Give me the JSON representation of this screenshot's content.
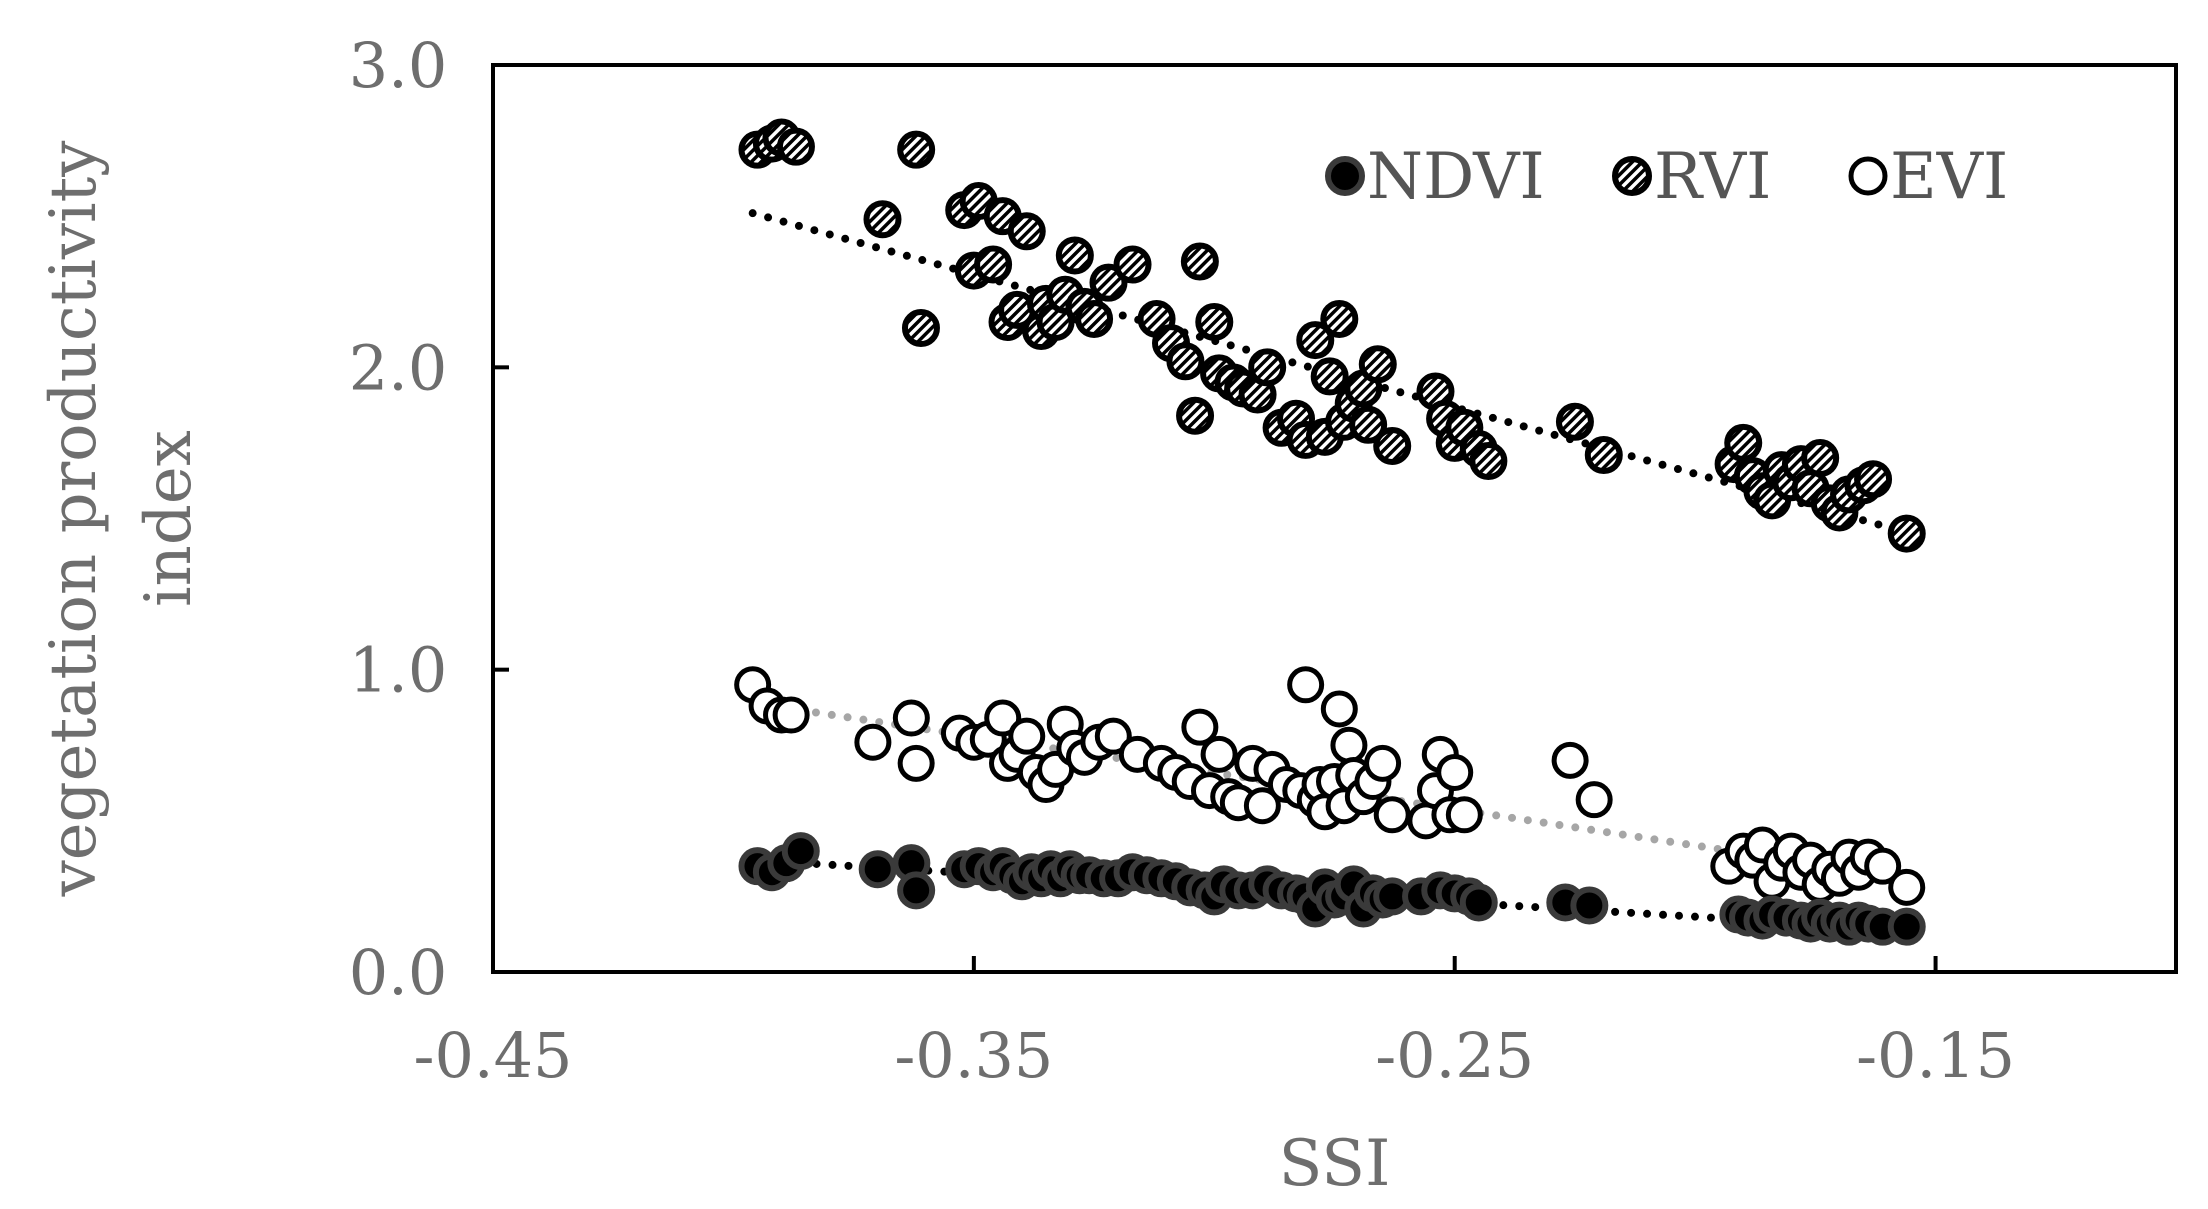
{
  "chart_data": {
    "type": "scatter",
    "title": "",
    "xlabel": "SSI",
    "ylabel_lines": [
      "vegetation productivity",
      "index"
    ],
    "xlim": [
      -0.45,
      -0.1
    ],
    "ylim": [
      0.0,
      3.0
    ],
    "xticks": [
      -0.45,
      -0.35,
      -0.25,
      -0.15
    ],
    "xtick_labels": [
      "-0.45",
      "-0.35",
      "-0.25",
      "-0.15"
    ],
    "yticks": [
      0.0,
      1.0,
      2.0,
      3.0
    ],
    "ytick_labels": [
      "0.0",
      "1.0",
      "2.0",
      "3.0"
    ],
    "grid": false,
    "legend_position": "top-right",
    "series": [
      {
        "name": "NDVI",
        "marker": "filled",
        "color": "#000000",
        "trend": {
          "x": [
            -0.396,
            -0.155
          ],
          "y": [
            0.37,
            0.14
          ],
          "color": "#000000"
        },
        "points": [
          [
            -0.395,
            0.35
          ],
          [
            -0.392,
            0.33
          ],
          [
            -0.389,
            0.36
          ],
          [
            -0.386,
            0.4
          ],
          [
            -0.37,
            0.34
          ],
          [
            -0.363,
            0.36
          ],
          [
            -0.362,
            0.27
          ],
          [
            -0.352,
            0.34
          ],
          [
            -0.349,
            0.35
          ],
          [
            -0.346,
            0.33
          ],
          [
            -0.344,
            0.35
          ],
          [
            -0.342,
            0.32
          ],
          [
            -0.34,
            0.3
          ],
          [
            -0.338,
            0.33
          ],
          [
            -0.336,
            0.31
          ],
          [
            -0.334,
            0.34
          ],
          [
            -0.332,
            0.31
          ],
          [
            -0.33,
            0.34
          ],
          [
            -0.328,
            0.32
          ],
          [
            -0.326,
            0.32
          ],
          [
            -0.323,
            0.31
          ],
          [
            -0.32,
            0.31
          ],
          [
            -0.317,
            0.33
          ],
          [
            -0.314,
            0.32
          ],
          [
            -0.311,
            0.31
          ],
          [
            -0.308,
            0.3
          ],
          [
            -0.305,
            0.28
          ],
          [
            -0.302,
            0.27
          ],
          [
            -0.3,
            0.25
          ],
          [
            -0.298,
            0.29
          ],
          [
            -0.295,
            0.27
          ],
          [
            -0.292,
            0.27
          ],
          [
            -0.289,
            0.29
          ],
          [
            -0.286,
            0.27
          ],
          [
            -0.283,
            0.26
          ],
          [
            -0.281,
            0.25
          ],
          [
            -0.279,
            0.21
          ],
          [
            -0.277,
            0.28
          ],
          [
            -0.275,
            0.24
          ],
          [
            -0.273,
            0.25
          ],
          [
            -0.271,
            0.29
          ],
          [
            -0.269,
            0.21
          ],
          [
            -0.267,
            0.26
          ],
          [
            -0.265,
            0.24
          ],
          [
            -0.263,
            0.25
          ],
          [
            -0.257,
            0.25
          ],
          [
            -0.253,
            0.27
          ],
          [
            -0.25,
            0.26
          ],
          [
            -0.247,
            0.25
          ],
          [
            -0.245,
            0.23
          ],
          [
            -0.227,
            0.23
          ],
          [
            -0.222,
            0.22
          ],
          [
            -0.191,
            0.19
          ],
          [
            -0.189,
            0.18
          ],
          [
            -0.186,
            0.17
          ],
          [
            -0.184,
            0.19
          ],
          [
            -0.181,
            0.18
          ],
          [
            -0.178,
            0.17
          ],
          [
            -0.176,
            0.16
          ],
          [
            -0.174,
            0.18
          ],
          [
            -0.172,
            0.16
          ],
          [
            -0.17,
            0.17
          ],
          [
            -0.168,
            0.15
          ],
          [
            -0.166,
            0.17
          ],
          [
            -0.164,
            0.16
          ],
          [
            -0.161,
            0.15
          ],
          [
            -0.156,
            0.15
          ]
        ]
      },
      {
        "name": "RVI",
        "marker": "hatched",
        "color": "#000000",
        "trend": {
          "x": [
            -0.396,
            -0.155
          ],
          "y": [
            2.51,
            1.45
          ],
          "color": "#000000"
        },
        "points": [
          [
            -0.395,
            2.72
          ],
          [
            -0.392,
            2.74
          ],
          [
            -0.39,
            2.76
          ],
          [
            -0.387,
            2.73
          ],
          [
            -0.369,
            2.49
          ],
          [
            -0.362,
            2.72
          ],
          [
            -0.361,
            2.13
          ],
          [
            -0.352,
            2.52
          ],
          [
            -0.35,
            2.32
          ],
          [
            -0.349,
            2.55
          ],
          [
            -0.346,
            2.34
          ],
          [
            -0.344,
            2.5
          ],
          [
            -0.343,
            2.15
          ],
          [
            -0.341,
            2.19
          ],
          [
            -0.339,
            2.45
          ],
          [
            -0.336,
            2.12
          ],
          [
            -0.335,
            2.21
          ],
          [
            -0.333,
            2.15
          ],
          [
            -0.331,
            2.24
          ],
          [
            -0.329,
            2.37
          ],
          [
            -0.327,
            2.2
          ],
          [
            -0.325,
            2.16
          ],
          [
            -0.322,
            2.28
          ],
          [
            -0.317,
            2.34
          ],
          [
            -0.312,
            2.16
          ],
          [
            -0.309,
            2.08
          ],
          [
            -0.306,
            2.02
          ],
          [
            -0.304,
            1.84
          ],
          [
            -0.303,
            2.35
          ],
          [
            -0.3,
            2.15
          ],
          [
            -0.299,
            1.98
          ],
          [
            -0.296,
            1.95
          ],
          [
            -0.294,
            1.93
          ],
          [
            -0.291,
            1.91
          ],
          [
            -0.289,
            2.0
          ],
          [
            -0.286,
            1.8
          ],
          [
            -0.283,
            1.83
          ],
          [
            -0.281,
            1.76
          ],
          [
            -0.279,
            2.09
          ],
          [
            -0.277,
            1.77
          ],
          [
            -0.276,
            1.97
          ],
          [
            -0.274,
            2.16
          ],
          [
            -0.273,
            1.82
          ],
          [
            -0.271,
            1.88
          ],
          [
            -0.269,
            1.93
          ],
          [
            -0.268,
            1.81
          ],
          [
            -0.266,
            2.01
          ],
          [
            -0.263,
            1.74
          ],
          [
            -0.254,
            1.92
          ],
          [
            -0.252,
            1.83
          ],
          [
            -0.25,
            1.75
          ],
          [
            -0.248,
            1.8
          ],
          [
            -0.245,
            1.73
          ],
          [
            -0.243,
            1.69
          ],
          [
            -0.225,
            1.82
          ],
          [
            -0.219,
            1.71
          ],
          [
            -0.192,
            1.68
          ],
          [
            -0.19,
            1.75
          ],
          [
            -0.188,
            1.64
          ],
          [
            -0.186,
            1.59
          ],
          [
            -0.184,
            1.56
          ],
          [
            -0.182,
            1.66
          ],
          [
            -0.18,
            1.62
          ],
          [
            -0.178,
            1.68
          ],
          [
            -0.176,
            1.6
          ],
          [
            -0.174,
            1.7
          ],
          [
            -0.172,
            1.55
          ],
          [
            -0.17,
            1.52
          ],
          [
            -0.168,
            1.58
          ],
          [
            -0.165,
            1.61
          ],
          [
            -0.163,
            1.63
          ],
          [
            -0.156,
            1.45
          ]
        ]
      },
      {
        "name": "EVI",
        "marker": "open",
        "color": "#000000",
        "trend": {
          "x": [
            -0.396,
            -0.155
          ],
          "y": [
            0.89,
            0.31
          ],
          "color": "#a6a6a6"
        },
        "points": [
          [
            -0.396,
            0.95
          ],
          [
            -0.393,
            0.88
          ],
          [
            -0.39,
            0.85
          ],
          [
            -0.388,
            0.85
          ],
          [
            -0.371,
            0.76
          ],
          [
            -0.363,
            0.84
          ],
          [
            -0.362,
            0.69
          ],
          [
            -0.353,
            0.79
          ],
          [
            -0.35,
            0.76
          ],
          [
            -0.347,
            0.77
          ],
          [
            -0.344,
            0.84
          ],
          [
            -0.343,
            0.69
          ],
          [
            -0.341,
            0.72
          ],
          [
            -0.339,
            0.78
          ],
          [
            -0.337,
            0.66
          ],
          [
            -0.335,
            0.62
          ],
          [
            -0.333,
            0.67
          ],
          [
            -0.331,
            0.82
          ],
          [
            -0.329,
            0.74
          ],
          [
            -0.327,
            0.71
          ],
          [
            -0.324,
            0.76
          ],
          [
            -0.321,
            0.78
          ],
          [
            -0.316,
            0.72
          ],
          [
            -0.311,
            0.69
          ],
          [
            -0.308,
            0.66
          ],
          [
            -0.305,
            0.63
          ],
          [
            -0.303,
            0.81
          ],
          [
            -0.301,
            0.6
          ],
          [
            -0.299,
            0.72
          ],
          [
            -0.297,
            0.58
          ],
          [
            -0.295,
            0.56
          ],
          [
            -0.292,
            0.69
          ],
          [
            -0.29,
            0.55
          ],
          [
            -0.288,
            0.67
          ],
          [
            -0.285,
            0.62
          ],
          [
            -0.282,
            0.6
          ],
          [
            -0.281,
            0.95
          ],
          [
            -0.279,
            0.57
          ],
          [
            -0.278,
            0.62
          ],
          [
            -0.277,
            0.53
          ],
          [
            -0.275,
            0.63
          ],
          [
            -0.274,
            0.87
          ],
          [
            -0.273,
            0.55
          ],
          [
            -0.272,
            0.75
          ],
          [
            -0.271,
            0.65
          ],
          [
            -0.269,
            0.58
          ],
          [
            -0.267,
            0.63
          ],
          [
            -0.265,
            0.69
          ],
          [
            -0.263,
            0.52
          ],
          [
            -0.256,
            0.5
          ],
          [
            -0.254,
            0.6
          ],
          [
            -0.253,
            0.72
          ],
          [
            -0.251,
            0.52
          ],
          [
            -0.25,
            0.66
          ],
          [
            -0.248,
            0.52
          ],
          [
            -0.226,
            0.7
          ],
          [
            -0.221,
            0.57
          ],
          [
            -0.193,
            0.35
          ],
          [
            -0.19,
            0.4
          ],
          [
            -0.188,
            0.37
          ],
          [
            -0.186,
            0.42
          ],
          [
            -0.184,
            0.3
          ],
          [
            -0.182,
            0.36
          ],
          [
            -0.18,
            0.4
          ],
          [
            -0.178,
            0.33
          ],
          [
            -0.176,
            0.37
          ],
          [
            -0.174,
            0.29
          ],
          [
            -0.172,
            0.34
          ],
          [
            -0.17,
            0.31
          ],
          [
            -0.168,
            0.38
          ],
          [
            -0.166,
            0.33
          ],
          [
            -0.164,
            0.38
          ],
          [
            -0.161,
            0.35
          ],
          [
            -0.156,
            0.28
          ]
        ]
      }
    ]
  }
}
